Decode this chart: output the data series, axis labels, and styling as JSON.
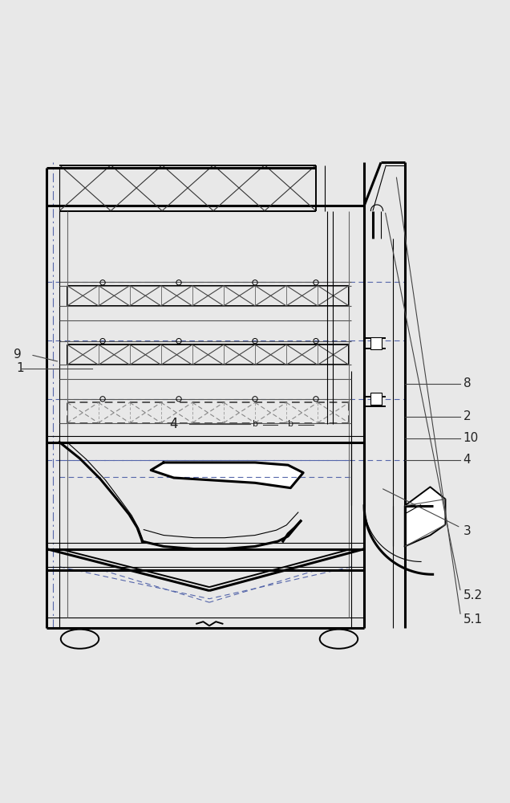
{
  "bg_color": "#e8e8e8",
  "line_color": "#000000",
  "light_line_color": "#555555",
  "dash_color": "#888888",
  "label_color": "#222222",
  "fig_width": 6.36,
  "fig_height": 10.0,
  "dpi": 100
}
